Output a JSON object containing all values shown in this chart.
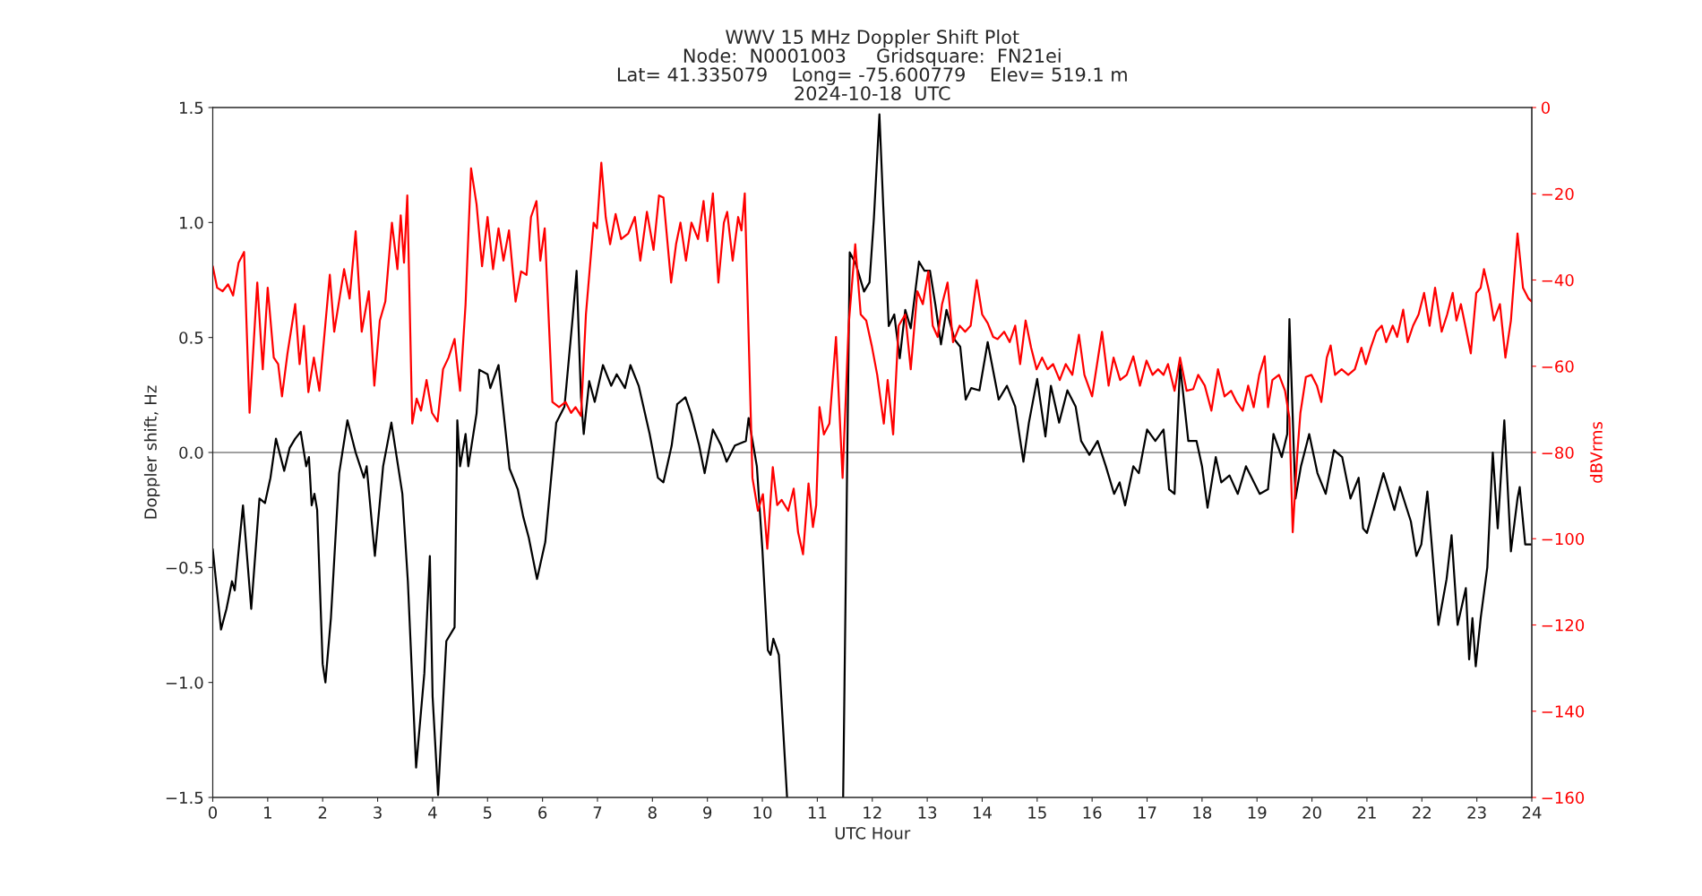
{
  "chart_data": {
    "type": "line",
    "title": "WWV 15 MHz Doppler Shift Plot\nNode:  N0001003     Gridsquare:  FN21ei\nLat= 41.335079    Long= -75.600779    Elev= 519.1 m\n2024-10-18  UTC",
    "xlabel": "UTC Hour",
    "ylabel": "Doppler shift, Hz",
    "y2label": "dBVrms",
    "xlim": [
      0,
      24
    ],
    "xticks": [
      0,
      1,
      2,
      3,
      4,
      5,
      6,
      7,
      8,
      9,
      10,
      11,
      12,
      13,
      14,
      15,
      16,
      17,
      18,
      19,
      20,
      21,
      22,
      23,
      24
    ],
    "ylim": [
      -1.5,
      1.5
    ],
    "yticks": [
      {
        "value": -1.5,
        "label": "−1.5"
      },
      {
        "value": -1,
        "label": "−1.0"
      },
      {
        "value": -0.5,
        "label": "−0.5"
      },
      {
        "value": 0,
        "label": "0.0"
      },
      {
        "value": 0.5,
        "label": "0.5"
      },
      {
        "value": 1,
        "label": "1.0"
      },
      {
        "value": 1.5,
        "label": "1.5"
      }
    ],
    "y2lim": [
      -160,
      0
    ],
    "y2ticks": [
      {
        "value": -160,
        "label": "−160"
      },
      {
        "value": -140,
        "label": "−140"
      },
      {
        "value": -120,
        "label": "−120"
      },
      {
        "value": -100,
        "label": "−100"
      },
      {
        "value": -80,
        "label": "−80"
      },
      {
        "value": -60,
        "label": "−60"
      },
      {
        "value": -40,
        "label": "−40"
      },
      {
        "value": -20,
        "label": "−20"
      },
      0
    ],
    "grid": false,
    "legend": false,
    "line_style": "solid",
    "marker": "none",
    "ref_lines": [
      {
        "axis": "y",
        "value": 0,
        "color": "#808080"
      }
    ],
    "series": [
      {
        "color": "#000000",
        "x": [
          0.0,
          0.15,
          0.25,
          0.35,
          0.4,
          0.55,
          0.7,
          0.85,
          0.95,
          1.05,
          1.15,
          1.3,
          1.4,
          1.5,
          1.6,
          1.7,
          1.75,
          1.8,
          1.85,
          1.9,
          2.0,
          2.05,
          2.15,
          2.3,
          2.45,
          2.6,
          2.75,
          2.8,
          2.95,
          3.1,
          3.25,
          3.45,
          3.55,
          3.7,
          3.85,
          3.95,
          4.0,
          4.1,
          4.25,
          4.4,
          4.45,
          4.5,
          4.6,
          4.65,
          4.8,
          4.85,
          5.0,
          5.05,
          5.2,
          5.4,
          5.55,
          5.65,
          5.75,
          5.9,
          6.05,
          6.25,
          6.4,
          6.55,
          6.62,
          6.7,
          6.75,
          6.85,
          6.95,
          7.1,
          7.25,
          7.35,
          7.5,
          7.6,
          7.75,
          7.95,
          8.1,
          8.2,
          8.35,
          8.45,
          8.6,
          8.7,
          8.85,
          8.95,
          9.1,
          9.25,
          9.35,
          9.5,
          9.7,
          9.75,
          9.9,
          10.0,
          10.1,
          10.15,
          10.2,
          10.3,
          10.45,
          11.0,
          11.47,
          11.59,
          11.7,
          11.85,
          11.95,
          12.03,
          12.13,
          12.2,
          12.3,
          12.4,
          12.5,
          12.6,
          12.7,
          12.85,
          12.95,
          13.05,
          13.15,
          13.25,
          13.35,
          13.5,
          13.6,
          13.7,
          13.8,
          13.95,
          14.1,
          14.3,
          14.45,
          14.6,
          14.75,
          14.85,
          15.0,
          15.15,
          15.25,
          15.4,
          15.55,
          15.7,
          15.8,
          15.95,
          16.1,
          16.25,
          16.4,
          16.5,
          16.6,
          16.75,
          16.85,
          17.0,
          17.15,
          17.3,
          17.4,
          17.5,
          17.6,
          17.75,
          17.9,
          18.0,
          18.1,
          18.25,
          18.35,
          18.5,
          18.65,
          18.8,
          19.05,
          19.2,
          19.3,
          19.45,
          19.55,
          19.59,
          19.7,
          19.8,
          19.95,
          20.1,
          20.25,
          20.4,
          20.55,
          20.7,
          20.85,
          20.93,
          21.0,
          21.3,
          21.5,
          21.6,
          21.8,
          21.9,
          21.99,
          22.1,
          22.3,
          22.45,
          22.54,
          22.65,
          22.8,
          22.86,
          22.92,
          22.98,
          23.07,
          23.19,
          23.29,
          23.38,
          23.5,
          23.62,
          23.74,
          23.78,
          23.88,
          24.0
        ],
        "values": [
          -0.42,
          -0.77,
          -0.68,
          -0.56,
          -0.6,
          -0.23,
          -0.68,
          -0.2,
          -0.22,
          -0.11,
          0.06,
          -0.08,
          0.02,
          0.06,
          0.09,
          -0.06,
          -0.02,
          -0.23,
          -0.18,
          -0.25,
          -0.92,
          -1.0,
          -0.72,
          -0.09,
          0.14,
          0.0,
          -0.11,
          -0.06,
          -0.45,
          -0.06,
          0.13,
          -0.18,
          -0.56,
          -1.37,
          -0.96,
          -0.45,
          -1.06,
          -1.49,
          -0.82,
          -0.76,
          0.14,
          -0.06,
          0.08,
          -0.06,
          0.17,
          0.36,
          0.34,
          0.28,
          0.38,
          -0.07,
          -0.16,
          -0.28,
          -0.37,
          -0.55,
          -0.39,
          0.13,
          0.2,
          0.59,
          0.79,
          0.24,
          0.08,
          0.31,
          0.22,
          0.38,
          0.29,
          0.34,
          0.28,
          0.38,
          0.29,
          0.08,
          -0.11,
          -0.13,
          0.03,
          0.21,
          0.24,
          0.17,
          0.03,
          -0.09,
          0.1,
          0.03,
          -0.04,
          0.03,
          0.05,
          0.15,
          -0.06,
          -0.42,
          -0.86,
          -0.88,
          -0.81,
          -0.88,
          -1.5,
          null,
          -1.5,
          0.87,
          0.82,
          0.7,
          0.74,
          1.02,
          1.47,
          1.07,
          0.55,
          0.6,
          0.41,
          0.62,
          0.54,
          0.83,
          0.79,
          0.79,
          0.64,
          0.47,
          0.62,
          0.49,
          0.46,
          0.23,
          0.28,
          0.27,
          0.48,
          0.23,
          0.29,
          0.2,
          -0.04,
          0.13,
          0.32,
          0.07,
          0.29,
          0.13,
          0.27,
          0.2,
          0.05,
          -0.01,
          0.05,
          -0.06,
          -0.18,
          -0.13,
          -0.23,
          -0.06,
          -0.09,
          0.1,
          0.05,
          0.1,
          -0.16,
          -0.18,
          0.38,
          0.05,
          0.05,
          -0.06,
          -0.24,
          -0.02,
          -0.13,
          -0.1,
          -0.18,
          -0.06,
          -0.18,
          -0.16,
          0.08,
          -0.02,
          0.08,
          0.58,
          -0.2,
          -0.06,
          0.08,
          -0.09,
          -0.18,
          0.01,
          -0.02,
          -0.2,
          -0.11,
          -0.33,
          -0.35,
          -0.09,
          -0.25,
          -0.15,
          -0.3,
          -0.45,
          -0.4,
          -0.17,
          -0.75,
          -0.55,
          -0.36,
          -0.75,
          -0.59,
          -0.9,
          -0.72,
          -0.93,
          -0.72,
          -0.5,
          0.0,
          -0.33,
          0.14,
          -0.43,
          -0.2,
          -0.15,
          -0.4,
          -0.4
        ]
      },
      {
        "color": "#ff0000",
        "axis": "y2",
        "x": [
          0.0,
          0.08,
          0.18,
          0.28,
          0.37,
          0.47,
          0.57,
          0.67,
          0.81,
          0.91,
          1.0,
          1.11,
          1.19,
          1.26,
          1.36,
          1.5,
          1.58,
          1.66,
          1.74,
          1.84,
          1.94,
          2.13,
          2.21,
          2.29,
          2.39,
          2.49,
          2.6,
          2.71,
          2.84,
          2.94,
          3.04,
          3.14,
          3.26,
          3.36,
          3.42,
          3.48,
          3.54,
          3.63,
          3.71,
          3.79,
          3.89,
          3.99,
          4.09,
          4.19,
          4.29,
          4.4,
          4.5,
          4.6,
          4.7,
          4.8,
          4.9,
          5.0,
          5.1,
          5.2,
          5.29,
          5.39,
          5.51,
          5.61,
          5.71,
          5.79,
          5.89,
          5.96,
          6.04,
          6.18,
          6.3,
          6.42,
          6.52,
          6.6,
          6.7,
          6.79,
          6.93,
          6.99,
          7.07,
          7.15,
          7.23,
          7.33,
          7.43,
          7.56,
          7.68,
          7.78,
          7.9,
          8.02,
          8.12,
          8.2,
          8.34,
          8.43,
          8.51,
          8.61,
          8.71,
          8.83,
          8.93,
          9.0,
          9.1,
          9.2,
          9.3,
          9.36,
          9.46,
          9.56,
          9.62,
          9.68,
          9.82,
          9.92,
          10.01,
          10.09,
          10.19,
          10.27,
          10.35,
          10.47,
          10.57,
          10.65,
          10.74,
          10.84,
          10.92,
          10.98,
          11.04,
          11.12,
          11.22,
          11.34,
          11.46,
          11.57,
          11.69,
          11.79,
          11.89,
          11.99,
          12.09,
          12.21,
          12.28,
          12.38,
          12.48,
          12.6,
          12.7,
          12.82,
          12.92,
          13.02,
          13.1,
          13.19,
          13.27,
          13.37,
          13.47,
          13.59,
          13.69,
          13.79,
          13.9,
          14.0,
          14.1,
          14.2,
          14.28,
          14.4,
          14.5,
          14.6,
          14.69,
          14.79,
          14.89,
          14.99,
          15.09,
          15.19,
          15.29,
          15.41,
          15.52,
          15.64,
          15.76,
          15.86,
          16.0,
          16.18,
          16.3,
          16.39,
          16.51,
          16.63,
          16.75,
          16.87,
          16.99,
          17.1,
          17.2,
          17.3,
          17.38,
          17.5,
          17.6,
          17.72,
          17.84,
          17.93,
          18.05,
          18.17,
          18.29,
          18.41,
          18.53,
          18.63,
          18.74,
          18.84,
          18.94,
          19.04,
          19.14,
          19.2,
          19.28,
          19.4,
          19.51,
          19.59,
          19.65,
          19.73,
          19.79,
          19.89,
          19.99,
          20.09,
          20.17,
          20.27,
          20.34,
          20.42,
          20.54,
          20.66,
          20.78,
          20.9,
          20.98,
          21.07,
          21.17,
          21.27,
          21.35,
          21.47,
          21.55,
          21.66,
          21.74,
          21.84,
          21.94,
          22.04,
          22.14,
          22.24,
          22.36,
          22.46,
          22.56,
          22.63,
          22.71,
          22.79,
          22.89,
          22.99,
          23.07,
          23.13,
          23.23,
          23.31,
          23.42,
          23.52,
          23.62,
          23.74,
          23.84,
          23.94,
          24.0
        ],
        "values": [
          -36.8,
          -41.8,
          -42.6,
          -41,
          -43.6,
          -36,
          -33.5,
          -70.8,
          -40.6,
          -60.7,
          -41.8,
          -58,
          -59.5,
          -67,
          -57,
          -45.6,
          -59.5,
          -50.6,
          -66,
          -58,
          -65.7,
          -38.8,
          -52,
          -45.6,
          -37.5,
          -44.3,
          -28.7,
          -52,
          -42.6,
          -64.5,
          -49.4,
          -45,
          -26.7,
          -37.5,
          -25,
          -36,
          -20.4,
          -73.3,
          -67.5,
          -70.3,
          -63.2,
          -70.8,
          -72.8,
          -60.7,
          -58,
          -53.7,
          -65.7,
          -45.6,
          -14.1,
          -22.4,
          -36.8,
          -25.4,
          -37.5,
          -28,
          -35.5,
          -28.5,
          -45,
          -38,
          -38.8,
          -25.4,
          -21.7,
          -35.5,
          -28,
          -68.3,
          -69.5,
          -68.3,
          -70.8,
          -69.5,
          -71.5,
          -48,
          -26.7,
          -28,
          -12.8,
          -25.4,
          -31.7,
          -24.7,
          -30.5,
          -29.2,
          -25.4,
          -35.5,
          -24.2,
          -33,
          -20.4,
          -20.9,
          -40.6,
          -31.7,
          -26.7,
          -35.5,
          -26.7,
          -30.5,
          -21.7,
          -31,
          -19.9,
          -40.6,
          -26.7,
          -24.2,
          -35.5,
          -25.4,
          -28.5,
          -19.9,
          -85.9,
          -93.5,
          -89.7,
          -102.3,
          -83.4,
          -92.2,
          -91,
          -93.5,
          -88.4,
          -98.5,
          -103.6,
          -87.2,
          -97.3,
          -92.2,
          -69.5,
          -75.8,
          -73.3,
          -53.2,
          -85.9,
          -50.6,
          -31.7,
          -48,
          -49.4,
          -55.2,
          -62,
          -73.3,
          -63.2,
          -75.8,
          -50.6,
          -48,
          -60.7,
          -42.6,
          -45.6,
          -38,
          -50.6,
          -53.2,
          -45.6,
          -40.6,
          -54.4,
          -50.6,
          -52,
          -50.6,
          -40,
          -48,
          -50,
          -53.2,
          -53.7,
          -52,
          -54.4,
          -50.6,
          -59.5,
          -49.4,
          -55.7,
          -60.7,
          -58,
          -60.7,
          -59.5,
          -63.2,
          -59.5,
          -62,
          -52.7,
          -62,
          -67,
          -52,
          -64.5,
          -58,
          -63.2,
          -62,
          -57.7,
          -64.5,
          -58.7,
          -62,
          -60.7,
          -62,
          -59.5,
          -65.7,
          -58,
          -65.7,
          -65.3,
          -62,
          -64.5,
          -70.3,
          -60.7,
          -67,
          -65.7,
          -68.3,
          -70.3,
          -64.5,
          -69.5,
          -62,
          -57.7,
          -69.5,
          -63.2,
          -62,
          -65.7,
          -72,
          -98.5,
          -80.9,
          -70.8,
          -62.5,
          -62,
          -64.5,
          -68.3,
          -58,
          -55.2,
          -62,
          -60.7,
          -62,
          -60.7,
          -55.7,
          -59.5,
          -55.7,
          -52,
          -50.6,
          -54.4,
          -50.6,
          -53.2,
          -46.9,
          -54.4,
          -50.6,
          -48,
          -43,
          -50.6,
          -41.8,
          -52,
          -48,
          -43,
          -49.4,
          -45.6,
          -50.6,
          -57,
          -43,
          -41.8,
          -37.5,
          -43,
          -49.4,
          -45.6,
          -58,
          -49.4,
          -29.2,
          -41.8,
          -44.3,
          -45
        ]
      }
    ]
  }
}
